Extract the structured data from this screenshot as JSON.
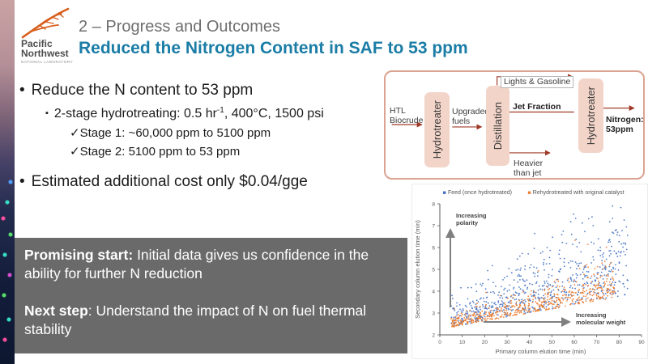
{
  "logo": {
    "line1": "Pacific",
    "line2": "Northwest",
    "line3": "NATIONAL LABORATORY"
  },
  "header": {
    "kicker": "2 – Progress and Outcomes",
    "title": "Reduced the Nitrogen Content in SAF to 53 ppm"
  },
  "bullets": {
    "marker_dot": "•",
    "marker_square": "▪",
    "b1": "Reduce the N content to 53 ppm",
    "s1_pre": "2-stage hydrotreating: 0.5 hr",
    "s1_sup": "-1",
    "s1_post": ", 400°C, 1500 psi",
    "c1": "✓Stage 1: ~60,000 ppm to 5100 ppm",
    "c2": "✓Stage 2: 5100 ppm to 53 ppm",
    "b2": "Estimated additional cost only $0.04/gge"
  },
  "diagram": {
    "input": "HTL\nBiocrude",
    "unit1": "Hydrotreater",
    "between": "Upgraded\nfuels",
    "unit2": "Distillation",
    "top_out": "Lights & Gasoline",
    "jet": "Jet Fraction",
    "unit3": "Hydrotreater",
    "result": "Nitrogen:\n53ppm",
    "bottom_out": "Heavier\nthan jet",
    "arrow_color": "#a03a28",
    "box_fill": "#f3d4c9",
    "border_color": "#dba391"
  },
  "callout": {
    "p1_bold": "Promising start:",
    "p1_rest": " Initial data gives us confidence in the ability for further N reduction",
    "p2_bold": "Next step",
    "p2_rest": ": Understand the impact of N on fuel thermal stability"
  },
  "chart_data": {
    "type": "scatter",
    "title": "",
    "xlabel": "Primary column elution time (min)",
    "ylabel": "Secondary column elution time (min)",
    "xlim": [
      0,
      90
    ],
    "ylim": [
      2,
      8
    ],
    "xticks": [
      0,
      10,
      20,
      30,
      40,
      50,
      60,
      70,
      80,
      90
    ],
    "yticks": [
      2,
      3,
      4,
      5,
      6,
      7,
      8
    ],
    "grid": false,
    "legend_position": "top",
    "axis_color": "#595959",
    "annotation_color": "#404040",
    "arrow_color": "#808080",
    "annotations": [
      {
        "text": "Increasing\npolarity",
        "arrow": "up"
      },
      {
        "text": "Increasing\nmolecular weight",
        "arrow": "right"
      }
    ],
    "series": [
      {
        "name": "Feed (once hydrotreated)",
        "color": "#4472c4",
        "marker": "dot",
        "n": 680,
        "seed": 11,
        "x_range": [
          5,
          84
        ],
        "base_envelope": [
          2.35,
          0.0185
        ],
        "spread": 2.0,
        "trend": "fan-shaped band rising from ~2.5 min at x=5 to 3–8 min at x=40–80; occupies the upper (more polar) region"
      },
      {
        "name": "Rehydrotreated with original catalyst",
        "color": "#ed7d31",
        "marker": "dot",
        "n": 560,
        "seed": 23,
        "x_range": [
          5,
          78
        ],
        "base_envelope": [
          2.35,
          0.0185
        ],
        "spread": 0.75,
        "trend": "tight lower band ~2.5–5 min hugging the bottom envelope (less polar after rehydrotreating)"
      }
    ]
  }
}
